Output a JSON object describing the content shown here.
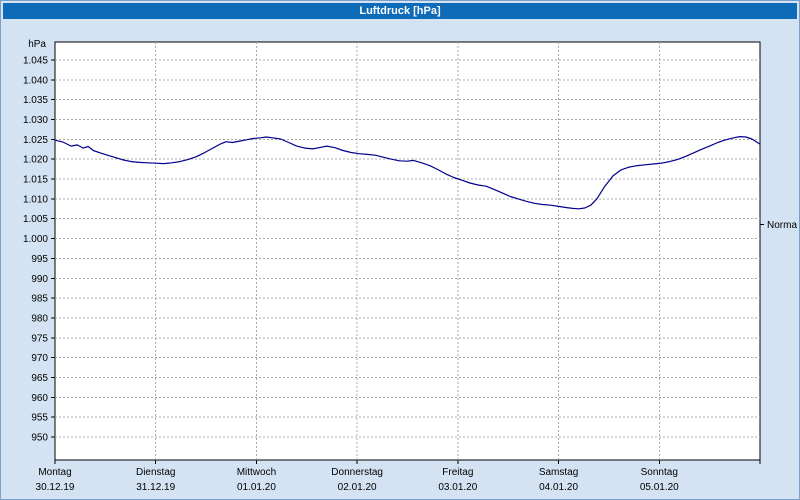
{
  "window": {
    "title": "Luftdruck [hPa]"
  },
  "colors": {
    "titlebar_bg": "#0e6bb8",
    "window_bg": "#d3e3f3",
    "plot_bg": "#ffffff",
    "plot_border": "#000000",
    "grid": "#a8a8a8",
    "line": "#00008b",
    "text": "#000000"
  },
  "chart_data": {
    "type": "line",
    "title": "Luftdruck [hPa]",
    "ylabel": "hPa",
    "ylim": [
      950,
      1045
    ],
    "y_tick_step": 5,
    "grid": true,
    "legend_position": "none",
    "y_ticks": [
      {
        "value": 1045,
        "label": "1.045"
      },
      {
        "value": 1040,
        "label": "1.040"
      },
      {
        "value": 1035,
        "label": "1.035"
      },
      {
        "value": 1030,
        "label": "1.030"
      },
      {
        "value": 1025,
        "label": "1.025"
      },
      {
        "value": 1020,
        "label": "1.020"
      },
      {
        "value": 1015,
        "label": "1.015"
      },
      {
        "value": 1010,
        "label": "1.010"
      },
      {
        "value": 1005,
        "label": "1.005"
      },
      {
        "value": 1000,
        "label": "1.000"
      },
      {
        "value": 995,
        "label": "995"
      },
      {
        "value": 990,
        "label": "990"
      },
      {
        "value": 985,
        "label": "985"
      },
      {
        "value": 980,
        "label": "980"
      },
      {
        "value": 975,
        "label": "975"
      },
      {
        "value": 970,
        "label": "970"
      },
      {
        "value": 965,
        "label": "965"
      },
      {
        "value": 960,
        "label": "960"
      },
      {
        "value": 955,
        "label": "955"
      },
      {
        "value": 950,
        "label": "950"
      }
    ],
    "x_days": [
      {
        "name": "Montag",
        "date": "30.12.19"
      },
      {
        "name": "Dienstag",
        "date": "31.12.19"
      },
      {
        "name": "Mittwoch",
        "date": "01.01.20"
      },
      {
        "name": "Donnerstag",
        "date": "02.01.20"
      },
      {
        "name": "Freitag",
        "date": "03.01.20"
      },
      {
        "name": "Samstag",
        "date": "04.01.20"
      },
      {
        "name": "Sonntag",
        "date": "05.01.20"
      }
    ],
    "normal_marker": {
      "label": "Normal",
      "value": 1003.5
    },
    "series": [
      {
        "name": "Luftdruck",
        "x": [
          0,
          0.08,
          0.16,
          0.22,
          0.28,
          0.33,
          0.38,
          0.45,
          0.52,
          0.6,
          0.68,
          0.76,
          0.84,
          0.92,
          1.0,
          1.08,
          1.16,
          1.24,
          1.32,
          1.4,
          1.48,
          1.56,
          1.64,
          1.7,
          1.76,
          1.84,
          1.9,
          1.96,
          2.04,
          2.1,
          2.16,
          2.24,
          2.32,
          2.4,
          2.48,
          2.56,
          2.64,
          2.7,
          2.78,
          2.86,
          2.94,
          3.02,
          3.1,
          3.18,
          3.26,
          3.34,
          3.42,
          3.5,
          3.56,
          3.64,
          3.72,
          3.8,
          3.88,
          3.96,
          4.04,
          4.12,
          4.2,
          4.28,
          4.36,
          4.44,
          4.52,
          4.6,
          4.68,
          4.76,
          4.84,
          4.92,
          5.0,
          5.08,
          5.14,
          5.2,
          5.26,
          5.32,
          5.38,
          5.46,
          5.54,
          5.62,
          5.7,
          5.78,
          5.86,
          5.94,
          6.02,
          6.1,
          6.18,
          6.26,
          6.34,
          6.42,
          6.5,
          6.58,
          6.66,
          6.74,
          6.8,
          6.86,
          6.92,
          7.0
        ],
        "y": [
          1024.8,
          1024.3,
          1023.3,
          1023.6,
          1022.8,
          1023.2,
          1022.2,
          1021.6,
          1021.0,
          1020.4,
          1019.8,
          1019.4,
          1019.2,
          1019.1,
          1019.0,
          1018.9,
          1019.1,
          1019.4,
          1019.9,
          1020.6,
          1021.6,
          1022.7,
          1023.8,
          1024.4,
          1024.2,
          1024.6,
          1024.9,
          1025.2,
          1025.4,
          1025.6,
          1025.4,
          1025.1,
          1024.2,
          1023.3,
          1022.8,
          1022.6,
          1023.0,
          1023.3,
          1022.9,
          1022.2,
          1021.7,
          1021.4,
          1021.2,
          1021.0,
          1020.5,
          1020.0,
          1019.6,
          1019.5,
          1019.7,
          1019.1,
          1018.4,
          1017.4,
          1016.3,
          1015.4,
          1014.7,
          1014.0,
          1013.5,
          1013.2,
          1012.4,
          1011.5,
          1010.6,
          1010.0,
          1009.4,
          1008.9,
          1008.6,
          1008.4,
          1008.1,
          1007.8,
          1007.6,
          1007.5,
          1007.7,
          1008.4,
          1010.0,
          1013.2,
          1015.8,
          1017.3,
          1018.0,
          1018.4,
          1018.6,
          1018.8,
          1019.0,
          1019.4,
          1019.9,
          1020.7,
          1021.6,
          1022.5,
          1023.3,
          1024.2,
          1024.9,
          1025.4,
          1025.7,
          1025.6,
          1025.1,
          1023.8
        ]
      }
    ]
  }
}
